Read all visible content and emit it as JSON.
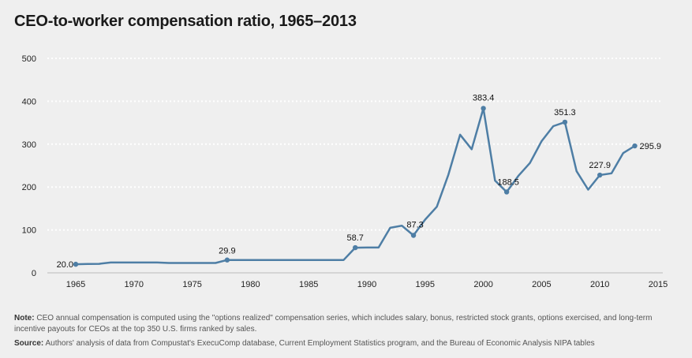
{
  "title": "CEO-to-worker compensation ratio, 1965–2013",
  "colors": {
    "line": "#4e7ea5",
    "grid": "#ffffff",
    "background": "#efefef"
  },
  "note": {
    "label": "Note:",
    "text": " CEO annual compensation is computed using the \"options realized\" compensation series, which includes salary, bonus, restricted stock grants, options exercised, and long-term incentive payouts for CEOs at the top 350 U.S. firms ranked by sales."
  },
  "source": {
    "label": "Source:",
    "text": " Authors' analysis of data from Compustat's ExecuComp database, Current Employment Statistics program, and the Bureau of Economic Analysis NIPA tables"
  },
  "chart_data": {
    "type": "line",
    "title": "CEO-to-worker compensation ratio, 1965–2013",
    "xlabel": "",
    "ylabel": "",
    "xlim": [
      1965,
      2015
    ],
    "ylim": [
      0,
      500
    ],
    "x_ticks": [
      1965,
      1970,
      1975,
      1980,
      1985,
      1990,
      1995,
      2000,
      2005,
      2010,
      2015
    ],
    "y_ticks": [
      0,
      100,
      200,
      300,
      400,
      500
    ],
    "grid": true,
    "series": [
      {
        "x": [
          1965,
          1966,
          1967,
          1968,
          1969,
          1970,
          1971,
          1972,
          1973,
          1974,
          1975,
          1976,
          1977,
          1978,
          1979,
          1980,
          1981,
          1982,
          1983,
          1984,
          1985,
          1986,
          1987,
          1988,
          1989,
          1990,
          1991,
          1992,
          1993,
          1994,
          1995,
          1996,
          1997,
          1998,
          1999,
          2000,
          2001,
          2002,
          2003,
          2004,
          2005,
          2006,
          2007,
          2008,
          2009,
          2010,
          2011,
          2012,
          2013
        ],
        "values": [
          20.0,
          20.5,
          21,
          24,
          24,
          24,
          24,
          24,
          23,
          23,
          23,
          23,
          23,
          29.9,
          30,
          30,
          30,
          30,
          30,
          30,
          30,
          30,
          30,
          30,
          58.7,
          59,
          59,
          105,
          110,
          87.3,
          124,
          154,
          229,
          322,
          288,
          383.4,
          215,
          188.5,
          226,
          256,
          307,
          342,
          351.3,
          237,
          194,
          227.9,
          232,
          279,
          295.9
        ]
      }
    ],
    "markers": [
      1965,
      1978,
      1989,
      1994,
      2000,
      2002,
      2007,
      2010,
      2013
    ],
    "data_labels": [
      {
        "x": 1965,
        "y": 20.0,
        "text": "20.0"
      },
      {
        "x": 1978,
        "y": 29.9,
        "text": "29.9"
      },
      {
        "x": 1989,
        "y": 58.7,
        "text": "58.7"
      },
      {
        "x": 1994,
        "y": 87.3,
        "text": "87.3"
      },
      {
        "x": 2000,
        "y": 383.4,
        "text": "383.4"
      },
      {
        "x": 2002,
        "y": 188.5,
        "text": "188.5"
      },
      {
        "x": 2007,
        "y": 351.3,
        "text": "351.3"
      },
      {
        "x": 2010,
        "y": 227.9,
        "text": "227.9"
      },
      {
        "x": 2013,
        "y": 295.9,
        "text": "295.9"
      }
    ]
  }
}
